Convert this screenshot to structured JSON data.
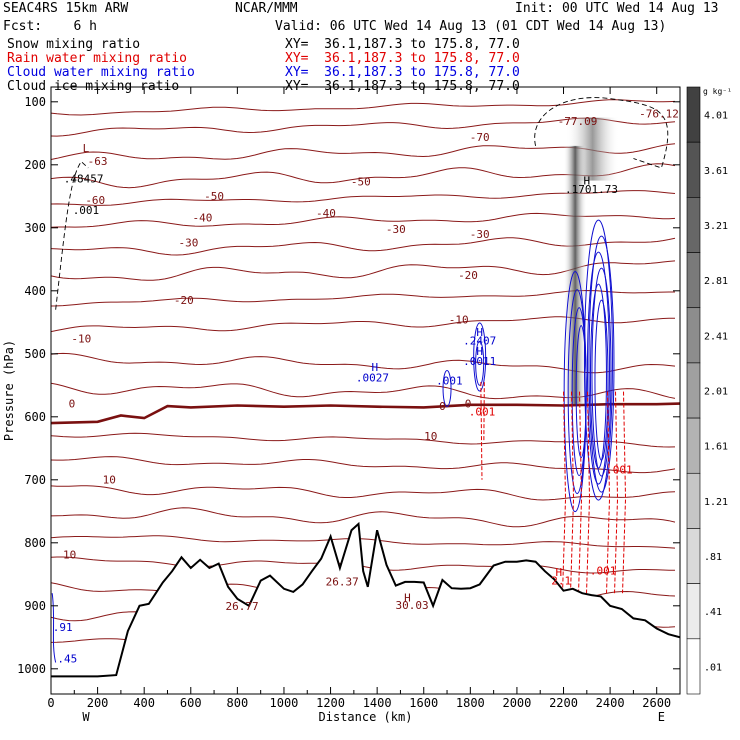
{
  "header": {
    "model": "SEAC4RS 15km ARW",
    "org": "NCAR/MMM",
    "init": "Init: 00 UTC Wed 14 Aug 13",
    "fcst": "Fcst:    6 h",
    "valid": "Valid: 06 UTC Wed 14 Aug 13 (01 CDT Wed 14 Aug 13)",
    "fields": [
      {
        "name": "Snow mixing ratio",
        "xy": "XY=  36.1,187.3 to 175.8, 77.0",
        "color": "#000000"
      },
      {
        "name": "Rain water mixing ratio",
        "xy": "XY=  36.1,187.3 to 175.8, 77.0",
        "color": "#e00000"
      },
      {
        "name": "Cloud water mixing ratio",
        "xy": "XY=  36.1,187.3 to 175.8, 77.0",
        "color": "#0000e0"
      },
      {
        "name": "Cloud ice mixing ratio",
        "xy": "XY=  36.1,187.3 to 175.8, 77.0",
        "color": "#000000"
      }
    ]
  },
  "colorbar": {
    "unit": "g kg⁻¹",
    "labels": [
      "4.01",
      "3.61",
      "3.21",
      "2.81",
      "2.41",
      "2.01",
      "1.61",
      "1.21",
      ".81",
      ".41",
      ".01"
    ]
  },
  "chart_data": {
    "type": "line",
    "xlabel": "Distance (km)",
    "ylabel": "Pressure (hPa)",
    "xlim": [
      0,
      2700
    ],
    "ylim": [
      1000,
      100
    ],
    "x_ticks": [
      0,
      200,
      400,
      600,
      800,
      1000,
      1200,
      1400,
      1600,
      1800,
      2000,
      2200,
      2400,
      2600
    ],
    "y_ticks": [
      100,
      200,
      300,
      400,
      500,
      600,
      700,
      800,
      900,
      1000
    ],
    "left_end": "W",
    "right_end": "E",
    "freezing_line_label": "0",
    "isotherm_labels": [
      {
        "text": "-70",
        "x": 1840,
        "p": 162
      },
      {
        "text": "-63",
        "x": 200,
        "p": 200
      },
      {
        "text": "-60",
        "x": 190,
        "p": 262
      },
      {
        "text": "-50",
        "x": 1330,
        "p": 233
      },
      {
        "text": "-50",
        "x": 700,
        "p": 256
      },
      {
        "text": "-40",
        "x": 650,
        "p": 290
      },
      {
        "text": "-40",
        "x": 1180,
        "p": 283
      },
      {
        "text": "-30",
        "x": 590,
        "p": 330
      },
      {
        "text": "-30",
        "x": 1480,
        "p": 308
      },
      {
        "text": "-30",
        "x": 1840,
        "p": 316
      },
      {
        "text": "-20",
        "x": 570,
        "p": 421
      },
      {
        "text": "-20",
        "x": 1790,
        "p": 381
      },
      {
        "text": "-10",
        "x": 130,
        "p": 482
      },
      {
        "text": "-10",
        "x": 1750,
        "p": 452
      },
      {
        "text": "0",
        "x": 90,
        "p": 585
      },
      {
        "text": "10",
        "x": 1630,
        "p": 637
      },
      {
        "text": "10",
        "x": 250,
        "p": 706
      },
      {
        "text": "10",
        "x": 80,
        "p": 825
      }
    ],
    "extrema_labels": [
      {
        "text": "L",
        "x": 150,
        "p": 180,
        "color": "#7a1010"
      },
      {
        "text": "-76.12",
        "x": 2610,
        "p": 125,
        "color": "#7a1010"
      },
      {
        "text": "-77.09",
        "x": 2260,
        "p": 137,
        "color": "#7a1010"
      },
      {
        "text": "H",
        "x": 1390,
        "p": 527,
        "color": "#0000cc"
      },
      {
        "text": ".0027",
        "x": 1380,
        "p": 544,
        "color": "#0000cc"
      },
      {
        "text": ".001",
        "x": 1710,
        "p": 549,
        "color": "#0000cc"
      },
      {
        "text": "H",
        "x": 1840,
        "p": 472,
        "color": "#0000cc"
      },
      {
        "text": ".2407",
        "x": 1840,
        "p": 485,
        "color": "#0000cc"
      },
      {
        "text": "H",
        "x": 1840,
        "p": 502,
        "color": "#0000cc"
      },
      {
        "text": ".0011",
        "x": 1840,
        "p": 518,
        "color": "#0000cc"
      },
      {
        "text": "0",
        "x": 1680,
        "p": 589,
        "color": "#7a1010"
      },
      {
        "text": ".001",
        "x": 1850,
        "p": 598,
        "color": "#e00000"
      },
      {
        "text": "H",
        "x": 2300,
        "p": 231,
        "color": "#000000"
      },
      {
        "text": ".1701.73",
        "x": 2320,
        "p": 245,
        "color": "#000000"
      },
      {
        "text": ".001",
        "x": 2440,
        "p": 690,
        "color": "#e00000"
      },
      {
        "text": "H",
        "x": 2180,
        "p": 853,
        "color": "#e00000"
      },
      {
        "text": "2.1",
        "x": 2190,
        "p": 866,
        "color": "#e00000"
      },
      {
        "text": "26.77",
        "x": 820,
        "p": 907,
        "color": "#7a1010"
      },
      {
        "text": "26.37",
        "x": 1250,
        "p": 868,
        "color": "#7a1010"
      },
      {
        "text": "H",
        "x": 1530,
        "p": 893,
        "color": "#7a1010"
      },
      {
        "text": "30.03",
        "x": 1550,
        "p": 905,
        "color": "#7a1010"
      },
      {
        "text": ".001",
        "x": 2370,
        "p": 850,
        "color": "#e00000"
      },
      {
        "text": ".91",
        "x": 50,
        "p": 940,
        "color": "#0000cc"
      },
      {
        "text": ".45",
        "x": 70,
        "p": 990,
        "color": "#0000cc"
      },
      {
        "text": ".001",
        "x": 150,
        "p": 278,
        "color": "#000000"
      },
      {
        "text": ".48457",
        "x": 140,
        "p": 228,
        "color": "#000000"
      }
    ],
    "terrain": {
      "x": [
        0,
        100,
        200,
        280,
        330,
        380,
        420,
        450,
        480,
        520,
        560,
        600,
        640,
        680,
        720,
        760,
        800,
        850,
        900,
        940,
        1000,
        1040,
        1080,
        1120,
        1160,
        1200,
        1240,
        1290,
        1320,
        1340,
        1360,
        1400,
        1440,
        1480,
        1520,
        1560,
        1600,
        1640,
        1680,
        1720,
        1760,
        1800,
        1840,
        1900,
        1950,
        2000,
        2040,
        2080,
        2120,
        2160,
        2200,
        2240,
        2280,
        2320,
        2360,
        2400,
        2450,
        2500,
        2550,
        2600,
        2650,
        2700
      ],
      "p_hPa": [
        1012,
        1012,
        1012,
        1010,
        940,
        900,
        897,
        880,
        863,
        845,
        823,
        840,
        827,
        840,
        833,
        870,
        889,
        900,
        860,
        852,
        873,
        878,
        866,
        845,
        825,
        790,
        840,
        780,
        770,
        845,
        870,
        780,
        835,
        868,
        862,
        862,
        863,
        900,
        859,
        872,
        873,
        872,
        866,
        836,
        830,
        830,
        828,
        830,
        845,
        858,
        876,
        873,
        880,
        883,
        885,
        900,
        905,
        920,
        923,
        936,
        945,
        950
      ]
    },
    "freezing_level": {
      "x": [
        0,
        200,
        300,
        400,
        500,
        600,
        800,
        1000,
        1200,
        1400,
        1600,
        1800,
        2000,
        2200,
        2400,
        2600,
        2700
      ],
      "p_hPa": [
        610,
        608,
        598,
        602,
        583,
        585,
        582,
        584,
        582,
        584,
        585,
        581,
        581,
        582,
        580,
        580,
        579
      ]
    }
  }
}
